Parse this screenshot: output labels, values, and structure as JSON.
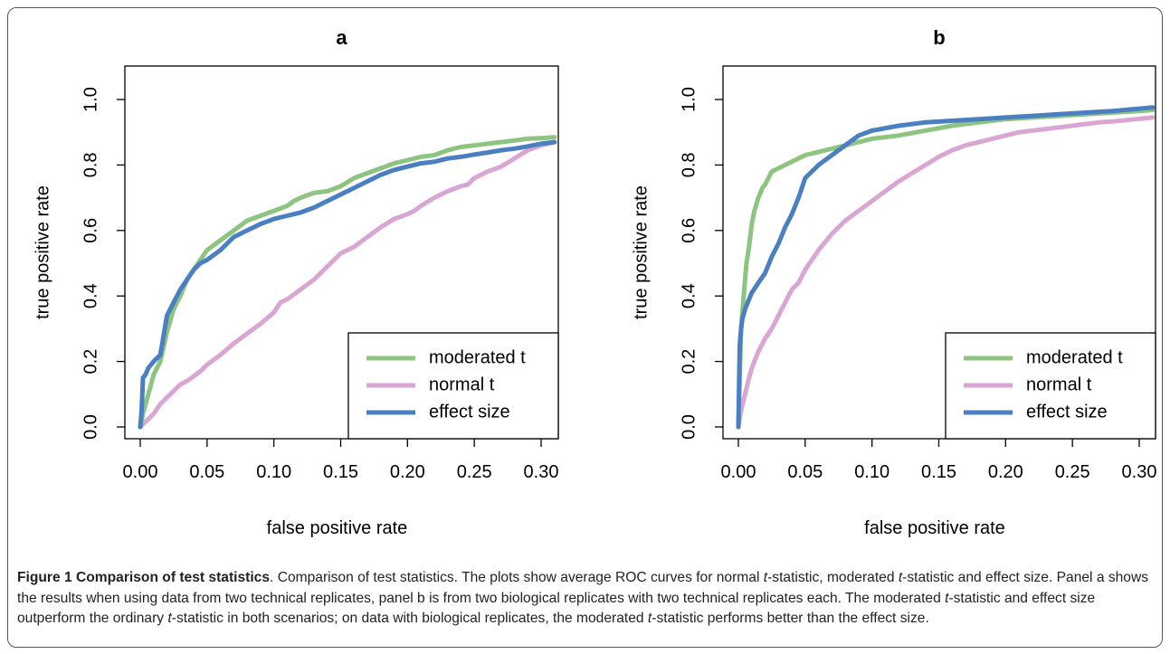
{
  "figure": {
    "label": "Figure 1",
    "title": "Comparison of test statistics",
    "caption_html": ". Comparison of test statistics. The plots show average ROC curves for normal <i>t</i>-statistic, moderated <i>t</i>-statistic and effect size. Panel a shows the results when using data from two technical replicates, panel b is from two biological replicates with two technical replicates each. The moderated <i>t</i>-statistic and effect size outperform the ordinary <i>t</i>-statistic in both scenarios; on data with biological replicates, the moderated <i>t</i>-statistic performs better than the effect size."
  },
  "chart_data": [
    {
      "type": "line",
      "title": "a",
      "xlabel": "false positive rate",
      "ylabel": "true positive rate",
      "xlim": [
        0,
        0.31
      ],
      "ylim": [
        0,
        1.0
      ],
      "xticks": [
        "0.00",
        "0.05",
        "0.10",
        "0.15",
        "0.20",
        "0.25",
        "0.30"
      ],
      "yticks": [
        "0.0",
        "0.2",
        "0.4",
        "0.6",
        "0.8",
        "1.0"
      ],
      "grid": false,
      "legend_position": "bottom-right",
      "series": [
        {
          "name": "moderated t",
          "color": "#8dc47f",
          "x": [
            0,
            0.002,
            0.006,
            0.01,
            0.015,
            0.02,
            0.025,
            0.03,
            0.035,
            0.04,
            0.045,
            0.05,
            0.06,
            0.07,
            0.08,
            0.09,
            0.1,
            0.11,
            0.115,
            0.12,
            0.13,
            0.14,
            0.15,
            0.16,
            0.17,
            0.18,
            0.19,
            0.2,
            0.21,
            0.22,
            0.23,
            0.24,
            0.25,
            0.26,
            0.27,
            0.28,
            0.29,
            0.3,
            0.31
          ],
          "y": [
            0,
            0.04,
            0.1,
            0.16,
            0.2,
            0.29,
            0.36,
            0.4,
            0.45,
            0.48,
            0.51,
            0.54,
            0.57,
            0.6,
            0.63,
            0.645,
            0.66,
            0.675,
            0.69,
            0.7,
            0.715,
            0.72,
            0.735,
            0.76,
            0.775,
            0.79,
            0.805,
            0.815,
            0.825,
            0.83,
            0.845,
            0.855,
            0.86,
            0.865,
            0.87,
            0.875,
            0.88,
            0.882,
            0.885
          ]
        },
        {
          "name": "normal t",
          "color": "#d9a5d3",
          "x": [
            0,
            0.005,
            0.01,
            0.015,
            0.02,
            0.025,
            0.03,
            0.035,
            0.04,
            0.045,
            0.05,
            0.06,
            0.07,
            0.08,
            0.09,
            0.1,
            0.105,
            0.11,
            0.12,
            0.13,
            0.14,
            0.145,
            0.15,
            0.16,
            0.17,
            0.18,
            0.19,
            0.2,
            0.205,
            0.21,
            0.22,
            0.23,
            0.24,
            0.245,
            0.25,
            0.26,
            0.27,
            0.28,
            0.29,
            0.3,
            0.31
          ],
          "y": [
            0,
            0.02,
            0.04,
            0.07,
            0.09,
            0.11,
            0.13,
            0.14,
            0.155,
            0.17,
            0.19,
            0.22,
            0.255,
            0.285,
            0.315,
            0.35,
            0.38,
            0.39,
            0.42,
            0.45,
            0.49,
            0.51,
            0.53,
            0.55,
            0.58,
            0.61,
            0.635,
            0.65,
            0.66,
            0.675,
            0.7,
            0.72,
            0.735,
            0.74,
            0.76,
            0.78,
            0.795,
            0.82,
            0.845,
            0.86,
            0.87
          ]
        },
        {
          "name": "effect size",
          "color": "#4a7fc1",
          "x": [
            0,
            0.001,
            0.002,
            0.004,
            0.006,
            0.01,
            0.015,
            0.02,
            0.025,
            0.03,
            0.035,
            0.04,
            0.045,
            0.05,
            0.06,
            0.07,
            0.08,
            0.09,
            0.1,
            0.11,
            0.12,
            0.13,
            0.14,
            0.15,
            0.16,
            0.17,
            0.18,
            0.19,
            0.2,
            0.21,
            0.22,
            0.23,
            0.24,
            0.25,
            0.26,
            0.27,
            0.28,
            0.29,
            0.3,
            0.31
          ],
          "y": [
            0,
            0.05,
            0.15,
            0.16,
            0.18,
            0.2,
            0.22,
            0.34,
            0.38,
            0.42,
            0.45,
            0.48,
            0.5,
            0.51,
            0.54,
            0.58,
            0.6,
            0.62,
            0.635,
            0.645,
            0.655,
            0.67,
            0.69,
            0.71,
            0.73,
            0.75,
            0.77,
            0.785,
            0.795,
            0.805,
            0.81,
            0.82,
            0.825,
            0.832,
            0.838,
            0.845,
            0.85,
            0.857,
            0.865,
            0.87
          ]
        }
      ]
    },
    {
      "type": "line",
      "title": "b",
      "xlabel": "false positive rate",
      "ylabel": "true positive rate",
      "xlim": [
        0,
        0.31
      ],
      "ylim": [
        0,
        1.0
      ],
      "xticks": [
        "0.00",
        "0.05",
        "0.10",
        "0.15",
        "0.20",
        "0.25",
        "0.30"
      ],
      "yticks": [
        "0.0",
        "0.2",
        "0.4",
        "0.6",
        "0.8",
        "1.0"
      ],
      "grid": false,
      "legend_position": "bottom-right",
      "series": [
        {
          "name": "moderated t",
          "color": "#8dc47f",
          "x": [
            0,
            0.001,
            0.002,
            0.004,
            0.006,
            0.008,
            0.01,
            0.012,
            0.015,
            0.018,
            0.02,
            0.025,
            0.03,
            0.04,
            0.05,
            0.06,
            0.07,
            0.08,
            0.09,
            0.1,
            0.12,
            0.14,
            0.16,
            0.18,
            0.2,
            0.22,
            0.24,
            0.26,
            0.28,
            0.3,
            0.31
          ],
          "y": [
            0,
            0.15,
            0.3,
            0.4,
            0.5,
            0.55,
            0.62,
            0.66,
            0.7,
            0.73,
            0.74,
            0.78,
            0.79,
            0.81,
            0.83,
            0.84,
            0.85,
            0.86,
            0.87,
            0.88,
            0.89,
            0.905,
            0.92,
            0.93,
            0.94,
            0.945,
            0.95,
            0.955,
            0.96,
            0.965,
            0.968
          ]
        },
        {
          "name": "normal t",
          "color": "#d9a5d3",
          "x": [
            0,
            0.002,
            0.005,
            0.008,
            0.01,
            0.015,
            0.02,
            0.025,
            0.03,
            0.035,
            0.04,
            0.045,
            0.05,
            0.055,
            0.06,
            0.07,
            0.08,
            0.09,
            0.1,
            0.11,
            0.12,
            0.13,
            0.14,
            0.15,
            0.16,
            0.17,
            0.18,
            0.19,
            0.2,
            0.21,
            0.22,
            0.23,
            0.24,
            0.25,
            0.26,
            0.27,
            0.28,
            0.29,
            0.3,
            0.31
          ],
          "y": [
            0,
            0.05,
            0.1,
            0.15,
            0.18,
            0.23,
            0.27,
            0.3,
            0.34,
            0.38,
            0.42,
            0.44,
            0.48,
            0.51,
            0.54,
            0.59,
            0.63,
            0.66,
            0.69,
            0.72,
            0.75,
            0.775,
            0.8,
            0.825,
            0.845,
            0.86,
            0.87,
            0.88,
            0.89,
            0.9,
            0.905,
            0.91,
            0.915,
            0.92,
            0.925,
            0.93,
            0.933,
            0.937,
            0.941,
            0.945
          ]
        },
        {
          "name": "effect size",
          "color": "#4a7fc1",
          "x": [
            0,
            0.001,
            0.002,
            0.003,
            0.005,
            0.008,
            0.01,
            0.015,
            0.02,
            0.025,
            0.03,
            0.035,
            0.04,
            0.045,
            0.05,
            0.055,
            0.06,
            0.07,
            0.08,
            0.09,
            0.1,
            0.12,
            0.14,
            0.16,
            0.18,
            0.2,
            0.22,
            0.24,
            0.26,
            0.28,
            0.3,
            0.31
          ],
          "y": [
            0,
            0.25,
            0.3,
            0.33,
            0.36,
            0.39,
            0.41,
            0.44,
            0.47,
            0.52,
            0.56,
            0.61,
            0.65,
            0.7,
            0.76,
            0.78,
            0.8,
            0.83,
            0.86,
            0.89,
            0.905,
            0.92,
            0.93,
            0.935,
            0.94,
            0.945,
            0.95,
            0.955,
            0.96,
            0.965,
            0.972,
            0.976
          ]
        }
      ]
    }
  ]
}
